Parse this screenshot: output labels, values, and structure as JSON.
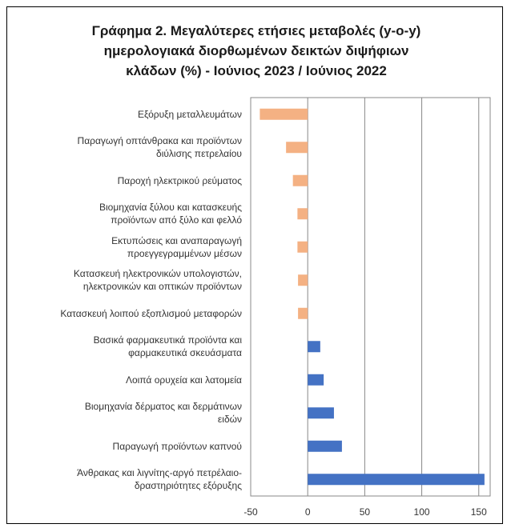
{
  "chart_data": {
    "type": "bar",
    "orientation": "horizontal",
    "title": "Γράφημα 2. Μεγαλύτερες ετήσιες μεταβολές (y-o-y)\nημερολογιακά διορθωμένων δεικτών διψήφιων\nκλάδων (%) - Ιούνιος 2023 / Ιούνιος 2022",
    "categories": [
      "Εξόρυξη μεταλλευμάτων",
      "Παραγωγή οπτάνθρακα και προϊόντων\nδιύλισης πετρελαίου",
      "Παροχή ηλεκτρικού ρεύματος",
      "Βιομηχανία ξύλου και κατασκευής\nπροϊόντων από ξύλο και φελλό",
      "Εκτυπώσεις και αναπαραγωγή\nπροεγγεγραμμένων μέσων",
      "Κατασκευή ηλεκτρονικών υπολογιστών,\nηλεκτρονικών και οπτικών προϊόντων",
      "Κατασκευή λοιπού εξοπλισμού μεταφορών",
      "Βασικά φαρμακευτικά προϊόντα και\nφαρμακευτικά σκευάσματα",
      "Λοιπά ορυχεία και λατομεία",
      "Βιομηχανία δέρματος και δερμάτινων\nειδών",
      "Παραγωγή προϊόντων καπνού",
      "Άνθρακας και λιγνίτης-αργό πετρέλαιο-\nδραστηριότητες εξόρυξης"
    ],
    "values": [
      -42,
      -19,
      -13,
      -9,
      -9,
      -8.5,
      -8.5,
      11,
      14,
      23,
      30,
      155
    ],
    "color": "#4472c4",
    "negative_color": "#f4b183",
    "xlim": [
      -50,
      160
    ],
    "xticks": [
      -50,
      0,
      50,
      100,
      150
    ],
    "grid": true
  }
}
